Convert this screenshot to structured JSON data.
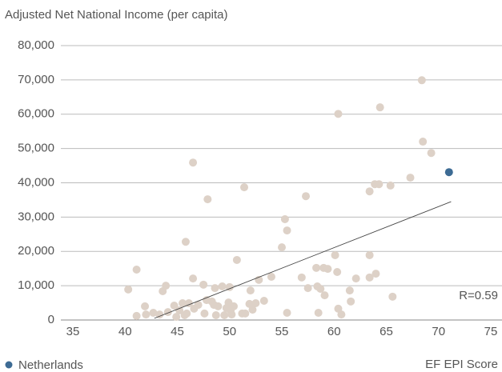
{
  "chart_data": {
    "type": "scatter",
    "title": "Adjusted Net National Income (per capita)",
    "x_label": "EF EPI Score",
    "annotation": "R=0.59",
    "xlim": [
      35,
      75
    ],
    "xticks": [
      35,
      40,
      45,
      50,
      55,
      60,
      65,
      70,
      75
    ],
    "ylim": [
      0,
      80000
    ],
    "yticks": [
      0,
      {
        "value": 10000,
        "label": "10,000"
      },
      {
        "value": 20000,
        "label": "20,000"
      },
      {
        "value": 30000,
        "label": "30,000"
      },
      {
        "value": 40000,
        "label": "40,000"
      },
      {
        "value": 50000,
        "label": "50,000"
      },
      {
        "value": 60000,
        "label": "60,000"
      },
      {
        "value": 70000,
        "label": "70,000"
      },
      {
        "value": 80000,
        "label": "80,000"
      }
    ],
    "grid": true,
    "legend": "bottom-left",
    "trendline": {
      "color": "#444444",
      "x": [
        42.8,
        71.2
      ],
      "y": [
        500,
        34500
      ]
    },
    "series": [
      {
        "color": "#ddd1c7",
        "x": [
          40.3,
          41.1,
          41.1,
          41.9,
          42.0,
          42.7,
          43.3,
          43.6,
          43.9,
          44.1,
          44.7,
          44.9,
          45.2,
          45.5,
          45.7,
          45.8,
          45.9,
          46.1,
          46.5,
          46.5,
          46.6,
          47.0,
          47.5,
          47.6,
          47.8,
          47.9,
          48.3,
          48.5,
          48.6,
          48.7,
          48.9,
          49.3,
          49.5,
          49.7,
          49.9,
          50.0,
          50.1,
          50.2,
          50.4,
          50.7,
          51.2,
          51.4,
          51.5,
          51.9,
          52.0,
          52.2,
          52.5,
          52.8,
          53.3,
          54.0,
          55.0,
          55.3,
          55.5,
          55.5,
          56.9,
          57.3,
          57.5,
          58.3,
          58.4,
          58.5,
          58.7,
          59.0,
          59.1,
          59.4,
          60.1,
          60.3,
          60.4,
          60.4,
          60.7,
          61.5,
          61.6,
          62.1,
          63.4,
          63.4,
          63.4,
          63.9,
          64.0,
          64.3,
          64.4,
          65.4,
          65.6,
          67.3,
          68.4,
          68.5,
          69.3
        ],
        "y": [
          8900,
          14700,
          1200,
          4000,
          1600,
          2100,
          1600,
          8400,
          10000,
          2300,
          4200,
          900,
          2800,
          4900,
          1400,
          22800,
          1900,
          4900,
          45900,
          12100,
          3300,
          4400,
          10300,
          1900,
          5800,
          35200,
          5400,
          4400,
          9300,
          1400,
          4000,
          9800,
          1400,
          3500,
          5100,
          9600,
          2800,
          1600,
          4000,
          17500,
          1900,
          38700,
          1900,
          4700,
          8600,
          3000,
          4900,
          11700,
          5600,
          12600,
          21200,
          29400,
          26100,
          2100,
          12400,
          36100,
          9300,
          15200,
          9800,
          2100,
          9100,
          15200,
          7200,
          14900,
          18900,
          14000,
          3300,
          60100,
          1600,
          8600,
          5400,
          12100,
          18900,
          12400,
          37500,
          39600,
          13500,
          39600,
          62000,
          39200,
          6800,
          41500,
          69900,
          52000,
          48700
        ]
      },
      {
        "name": "Netherlands",
        "color": "#3d6b94",
        "x": [
          71.0
        ],
        "y": [
          43100
        ]
      }
    ]
  }
}
